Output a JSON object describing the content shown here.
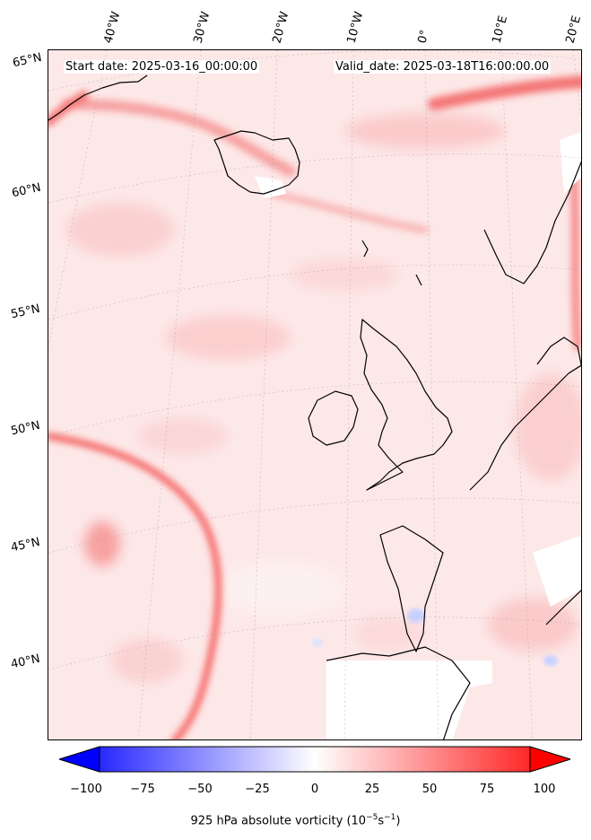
{
  "header": {
    "start_date": "Start date: 2025-03-16_00:00:00",
    "valid_date": "Valid_date: 2025-03-18T16:00:00.00"
  },
  "map": {
    "projection": "conic",
    "longitude_labels": [
      "40°W",
      "30°W",
      "20°W",
      "10°W",
      "0°",
      "10°E",
      "20°E"
    ],
    "latitude_labels": [
      "65°N",
      "60°N",
      "55°N",
      "50°N",
      "45°N",
      "40°N"
    ],
    "field": "925 hPa absolute vorticity",
    "colors": {
      "positive": "#ff0000",
      "negative": "#0000ff",
      "zero": "#ffffff",
      "coast": "#000000"
    }
  },
  "colorbar": {
    "ticks": [
      "−100",
      "−75",
      "−50",
      "−25",
      "0",
      "25",
      "50",
      "75",
      "100"
    ],
    "min": -100,
    "max": 100,
    "label": "925 hPa absolute vorticity (10",
    "label_exp1": "−5",
    "label_mid": "s",
    "label_exp2": "−1",
    "label_end": ")"
  }
}
